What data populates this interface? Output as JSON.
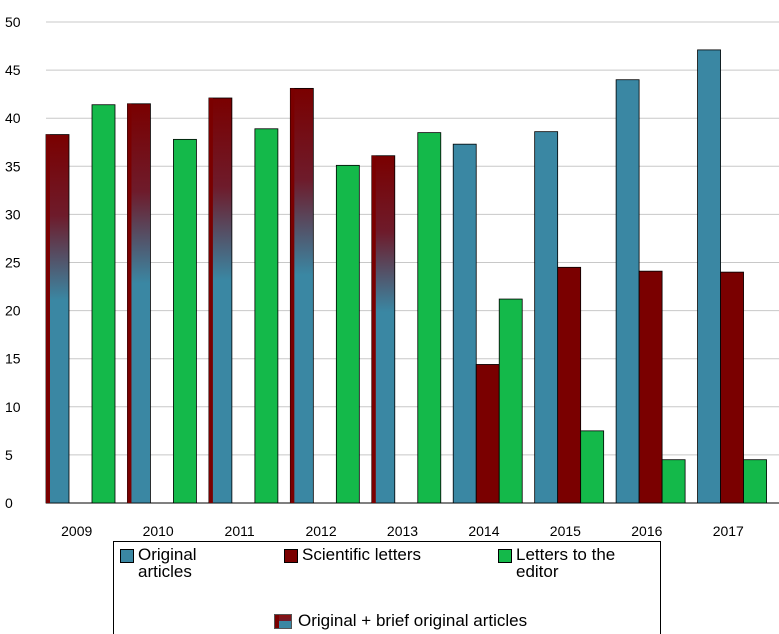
{
  "chart_data": {
    "type": "bar",
    "categories": [
      "2009",
      "2010",
      "2011",
      "2012",
      "2013",
      "2014",
      "2015",
      "2016",
      "2017"
    ],
    "series": [
      {
        "name": "Original articles",
        "key": "original",
        "color": "#3a87a3",
        "values": [
          38.3,
          41.5,
          42.1,
          43.1,
          36.1,
          37.3,
          38.6,
          44.0,
          47.1
        ]
      },
      {
        "name": "Scientific letters",
        "key": "letters",
        "color": "#7a0000",
        "values": [
          null,
          null,
          null,
          null,
          null,
          14.4,
          24.5,
          24.1,
          24.0
        ]
      },
      {
        "name": "Letters to the editor",
        "key": "editor",
        "color": "#14b94a",
        "values": [
          41.4,
          37.8,
          38.9,
          35.1,
          38.5,
          21.2,
          7.5,
          4.5,
          4.5
        ]
      }
    ],
    "combined_series": {
      "name": "Original + brief original articles",
      "applies_to": [
        "2009",
        "2010",
        "2011",
        "2012",
        "2013"
      ]
    },
    "ylim": [
      0,
      50
    ],
    "yticks": [
      0,
      5,
      10,
      15,
      20,
      25,
      30,
      35,
      40,
      45,
      50
    ],
    "grid": true,
    "legend_position": "bottom",
    "colors": {
      "blue": "#3a87a3",
      "dark_red": "#7a0000",
      "green": "#14b94a",
      "grid": "#c8c8c8"
    }
  },
  "legend": {
    "original": "Original\narticles",
    "letters": "Scientific letters",
    "editor": "Letters to the\neditor",
    "combined": "Original + brief original articles"
  }
}
